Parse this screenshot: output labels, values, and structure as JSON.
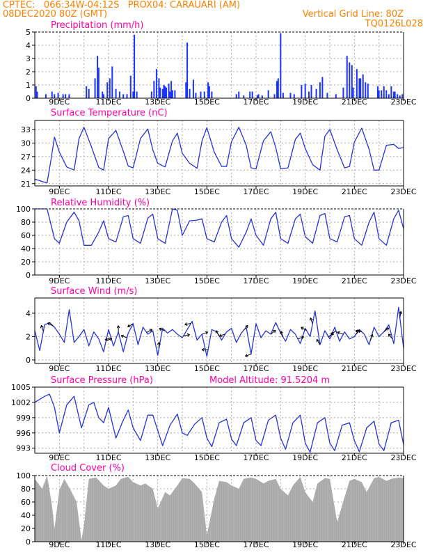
{
  "header": {
    "line1": "CPTEC:   066:34W-04:12S   PROX04: CARAUARI (AM)",
    "line2": "08DEC2020 80Z (GMT)",
    "vertical_grid": "Vertical Grid Line: 80Z",
    "run_id": "TQ0126L028"
  },
  "colors": {
    "header": "#ff8000",
    "panel_title": "#ff00aa",
    "series_line": "#2233dd",
    "precip_bar": "#1a33ff",
    "cloud_fill": "#a8a8a8",
    "grid": "#aaaaaa"
  },
  "x_tick_labels": [
    "9DEC",
    "11DEC",
    "13DEC",
    "15DEC",
    "17DEC",
    "19DEC",
    "21DEC",
    "23DEC"
  ],
  "chart_data": [
    {
      "id": "precip",
      "type": "bar",
      "title": "Precipitation (mm/h)",
      "x_unit": "days since 08DEC2020 08Z",
      "xlim": [
        0,
        15
      ],
      "ylim": [
        0,
        5
      ],
      "yticks": [
        0,
        1,
        2,
        3,
        4,
        5
      ],
      "grid": true,
      "bars": [
        [
          0.05,
          0.9
        ],
        [
          0.1,
          0.5
        ],
        [
          0.45,
          0.3
        ],
        [
          0.7,
          0.5
        ],
        [
          0.8,
          0.3
        ],
        [
          0.95,
          0.4
        ],
        [
          1.15,
          0.3
        ],
        [
          1.25,
          0.3
        ],
        [
          1.4,
          0.3
        ],
        [
          2.1,
          0.9
        ],
        [
          2.2,
          0.7
        ],
        [
          2.45,
          1.5
        ],
        [
          2.55,
          3.2
        ],
        [
          2.6,
          2.3
        ],
        [
          2.75,
          0.5
        ],
        [
          2.8,
          0.3
        ],
        [
          2.95,
          1.2
        ],
        [
          3.05,
          1.5
        ],
        [
          3.15,
          2.4
        ],
        [
          3.3,
          0.7
        ],
        [
          3.45,
          0.5
        ],
        [
          3.6,
          0.3
        ],
        [
          3.75,
          0.3
        ],
        [
          3.9,
          1.7
        ],
        [
          4.0,
          0.5
        ],
        [
          4.05,
          4.8
        ],
        [
          4.15,
          0.5
        ],
        [
          4.75,
          0.5
        ],
        [
          4.85,
          1.3
        ],
        [
          4.95,
          2.2
        ],
        [
          5.05,
          1.5
        ],
        [
          5.1,
          0.8
        ],
        [
          5.2,
          0.7
        ],
        [
          5.25,
          1.0
        ],
        [
          5.3,
          0.9
        ],
        [
          5.35,
          0.8
        ],
        [
          5.45,
          1.1
        ],
        [
          5.5,
          0.5
        ],
        [
          5.55,
          1.3
        ],
        [
          5.6,
          0.6
        ],
        [
          5.7,
          0.6
        ],
        [
          6.15,
          1.2
        ],
        [
          6.2,
          4.2
        ],
        [
          6.3,
          0.7
        ],
        [
          6.45,
          1.4
        ],
        [
          6.55,
          0.4
        ],
        [
          6.75,
          0.5
        ],
        [
          6.9,
          0.5
        ],
        [
          7.05,
          1.2
        ],
        [
          7.1,
          0.9
        ],
        [
          7.2,
          0.5
        ],
        [
          8.2,
          0.3
        ],
        [
          8.3,
          0.5
        ],
        [
          8.5,
          0.2
        ],
        [
          8.75,
          0.5
        ],
        [
          8.85,
          0.5
        ],
        [
          9.05,
          0.2
        ],
        [
          9.1,
          0.3
        ],
        [
          9.25,
          0.2
        ],
        [
          9.5,
          0.6
        ],
        [
          9.75,
          0.3
        ],
        [
          9.85,
          1.3
        ],
        [
          9.9,
          1.5
        ],
        [
          10.0,
          4.9
        ],
        [
          10.1,
          0.4
        ],
        [
          10.4,
          0.4
        ],
        [
          10.55,
          0.3
        ],
        [
          10.85,
          1.0
        ],
        [
          11.0,
          1.1
        ],
        [
          11.15,
          0.5
        ],
        [
          11.25,
          1.0
        ],
        [
          11.45,
          0.7
        ],
        [
          11.6,
          1.2
        ],
        [
          11.7,
          1.6
        ],
        [
          11.9,
          0.4
        ],
        [
          12.25,
          0.3
        ],
        [
          12.55,
          0.8
        ],
        [
          12.7,
          3.2
        ],
        [
          12.8,
          2.7
        ],
        [
          12.9,
          2.5
        ],
        [
          12.95,
          0.8
        ],
        [
          13.1,
          2.2
        ],
        [
          13.2,
          1.5
        ],
        [
          13.25,
          1.5
        ],
        [
          13.35,
          1.8
        ],
        [
          13.45,
          1.2
        ],
        [
          13.55,
          1.1
        ],
        [
          13.95,
          0.9
        ],
        [
          14.0,
          0.6
        ],
        [
          14.1,
          0.6
        ],
        [
          14.2,
          0.9
        ],
        [
          14.3,
          0.6
        ],
        [
          14.4,
          0.3
        ],
        [
          14.5,
          0.9
        ],
        [
          14.6,
          0.5
        ],
        [
          14.65,
          0.5
        ],
        [
          14.75,
          0.3
        ],
        [
          14.85,
          0.2
        ],
        [
          14.95,
          0.3
        ]
      ]
    },
    {
      "id": "temp",
      "type": "line",
      "title": "Surface Temperature (nC)",
      "x_unit": "days since 08DEC2020 08Z",
      "xlim": [
        0,
        15
      ],
      "ylim": [
        20.5,
        35
      ],
      "yticks": [
        21,
        24,
        27,
        30,
        33
      ],
      "grid": true,
      "x": [
        0,
        0.4,
        0.5,
        0.65,
        0.8,
        1.0,
        1.3,
        1.6,
        1.8,
        2.0,
        2.3,
        2.6,
        2.8,
        3.0,
        3.3,
        3.6,
        3.8,
        4.0,
        4.3,
        4.6,
        4.8,
        5.0,
        5.3,
        5.6,
        5.8,
        6.0,
        6.3,
        6.6,
        6.8,
        7.0,
        7.3,
        7.6,
        7.8,
        8.0,
        8.3,
        8.6,
        8.8,
        9.0,
        9.3,
        9.6,
        9.8,
        10.0,
        10.3,
        10.6,
        10.8,
        11.0,
        11.3,
        11.6,
        11.8,
        12.0,
        12.3,
        12.6,
        12.8,
        13.0,
        13.3,
        13.6,
        13.8,
        14.0,
        14.3,
        14.6,
        14.8,
        15.0
      ],
      "values": [
        22,
        21.3,
        21.2,
        26,
        31.3,
        28,
        24.7,
        24,
        31,
        33.5,
        29.2,
        24.6,
        24,
        31,
        32.8,
        28.2,
        24.9,
        24.5,
        31,
        33.1,
        28.5,
        25.5,
        24.7,
        30.5,
        32.2,
        27.7,
        25.5,
        24.4,
        30.5,
        33.4,
        28,
        24.8,
        24.8,
        30.3,
        33.5,
        29.5,
        24.5,
        24.3,
        30.5,
        32.5,
        29,
        24.3,
        24.5,
        30.8,
        32.2,
        28.8,
        25.2,
        24,
        31.5,
        33,
        28.5,
        24.5,
        24.8,
        30.2,
        33.3,
        28.6,
        24,
        24,
        29.5,
        29.7,
        28.8,
        29
      ]
    },
    {
      "id": "rh",
      "type": "line",
      "title": "Relative Humidity (%)",
      "x_unit": "days since 08DEC2020 08Z",
      "xlim": [
        0,
        15
      ],
      "ylim": [
        0,
        100
      ],
      "yticks": [
        0,
        20,
        40,
        60,
        80,
        100
      ],
      "grid": true,
      "x": [
        0,
        0.5,
        0.8,
        1.0,
        1.3,
        1.6,
        1.8,
        2.0,
        2.3,
        2.6,
        2.8,
        3.0,
        3.3,
        3.6,
        3.8,
        4.0,
        4.3,
        4.6,
        4.8,
        5.0,
        5.3,
        5.6,
        5.8,
        6.0,
        6.3,
        6.6,
        6.8,
        7.0,
        7.3,
        7.6,
        7.8,
        8.0,
        8.3,
        8.6,
        8.8,
        9.0,
        9.3,
        9.6,
        9.8,
        10.0,
        10.3,
        10.6,
        10.8,
        11.0,
        11.3,
        11.6,
        11.8,
        12.0,
        12.3,
        12.6,
        12.8,
        13.0,
        13.3,
        13.6,
        13.8,
        14.0,
        14.3,
        14.6,
        14.8,
        15.0
      ],
      "values": [
        100,
        100,
        55,
        48,
        80,
        95,
        82,
        45,
        45,
        65,
        82,
        55,
        50,
        88,
        90,
        55,
        48,
        86,
        92,
        55,
        48,
        100,
        98,
        60,
        82,
        83,
        85,
        55,
        50,
        80,
        90,
        55,
        42,
        65,
        85,
        60,
        45,
        85,
        95,
        55,
        48,
        85,
        92,
        58,
        48,
        90,
        93,
        55,
        50,
        88,
        90,
        55,
        45,
        80,
        95,
        55,
        45,
        85,
        98,
        70
      ]
    },
    {
      "id": "wind",
      "type": "line",
      "title": "Surface Wind (m/s)",
      "x_unit": "days since 08DEC2020 08Z",
      "xlim": [
        0,
        15
      ],
      "ylim": [
        -0.3,
        5.3
      ],
      "yticks": [
        0,
        2,
        4
      ],
      "grid": true,
      "x": [
        0,
        0.2,
        0.4,
        0.6,
        0.8,
        1.0,
        1.2,
        1.4,
        1.6,
        1.8,
        2.0,
        2.2,
        2.4,
        2.6,
        2.8,
        3.0,
        3.2,
        3.4,
        3.6,
        3.8,
        4.0,
        4.2,
        4.4,
        4.6,
        4.8,
        5.0,
        5.2,
        5.4,
        5.6,
        5.8,
        6.0,
        6.2,
        6.4,
        6.6,
        6.8,
        7.0,
        7.2,
        7.4,
        7.6,
        7.8,
        8.0,
        8.2,
        8.4,
        8.6,
        8.8,
        9.0,
        9.2,
        9.4,
        9.6,
        9.8,
        10.0,
        10.2,
        10.4,
        10.6,
        10.8,
        11.0,
        11.2,
        11.4,
        11.6,
        11.8,
        12.0,
        12.2,
        12.4,
        12.6,
        12.8,
        13.0,
        13.2,
        13.4,
        13.6,
        13.8,
        14.0,
        14.2,
        14.4,
        14.6,
        14.8,
        15.0
      ],
      "values": [
        2.5,
        0.8,
        3.0,
        3.2,
        2.8,
        2.2,
        1.5,
        4.3,
        1.5,
        2.0,
        2.6,
        1.2,
        2.4,
        1.8,
        0.7,
        2.6,
        1.2,
        2.4,
        0.7,
        2.3,
        3.1,
        1.3,
        2.8,
        2.2,
        2.5,
        0.4,
        2.7,
        2.3,
        2.6,
        2.2,
        1.9,
        2.6,
        3.3,
        1.7,
        2.2,
        0.3,
        2.6,
        2.4,
        1.7,
        2.4,
        2.7,
        1.5,
        2.3,
        2.8,
        0.5,
        3.1,
        1.9,
        2.5,
        2.2,
        3.2,
        2.3,
        1.6,
        2.6,
        2.2,
        1.4,
        2.7,
        2.0,
        4.2,
        1.3,
        2.5,
        1.8,
        2.8,
        1.6,
        2.4,
        1.8,
        2.0,
        2.6,
        2.2,
        1.3,
        2.8,
        2.0,
        2.4,
        3.0,
        1.4,
        4.5,
        1.0
      ],
      "arrows": [
        [
          0.35,
          -110
        ],
        [
          0.75,
          -150
        ],
        [
          2.9,
          -20
        ],
        [
          3.1,
          -200
        ],
        [
          3.4,
          -90
        ],
        [
          3.75,
          -160
        ],
        [
          4.0,
          -210
        ],
        [
          4.55,
          -30
        ],
        [
          5.05,
          -90
        ],
        [
          5.3,
          -160
        ],
        [
          6.05,
          -10
        ],
        [
          6.35,
          -190
        ],
        [
          6.8,
          -20
        ],
        [
          7.05,
          -180
        ],
        [
          7.5,
          -120
        ],
        [
          7.75,
          -200
        ],
        [
          8.5,
          -50
        ],
        [
          8.8,
          -200
        ],
        [
          9.6,
          -40
        ],
        [
          10.1,
          -110
        ],
        [
          10.7,
          -20
        ],
        [
          11.05,
          -150
        ],
        [
          11.3,
          -110
        ],
        [
          11.6,
          -120
        ],
        [
          11.95,
          -40
        ],
        [
          12.25,
          -220
        ],
        [
          12.55,
          -160
        ],
        [
          13.05,
          -50
        ],
        [
          13.3,
          -170
        ],
        [
          13.65,
          -70
        ],
        [
          14.2,
          -40
        ],
        [
          14.55,
          -130
        ],
        [
          14.85,
          -80
        ]
      ]
    },
    {
      "id": "pres",
      "type": "line",
      "title": "Surface Pressure (hPa)",
      "subtitle": "Model Altitude: 91.5204 m",
      "x_unit": "days since 08DEC2020 08Z",
      "xlim": [
        0,
        15
      ],
      "ylim": [
        992,
        1005
      ],
      "yticks": [
        993,
        996,
        999,
        1002,
        1005
      ],
      "grid": true,
      "x": [
        0,
        0.4,
        0.6,
        0.8,
        1.0,
        1.3,
        1.6,
        1.9,
        2.2,
        2.4,
        2.6,
        2.8,
        3.0,
        3.3,
        3.6,
        3.8,
        4.0,
        4.3,
        4.6,
        4.8,
        5.0,
        5.2,
        5.5,
        5.8,
        6.0,
        6.2,
        6.5,
        6.8,
        7.0,
        7.2,
        7.5,
        7.8,
        8.0,
        8.2,
        8.5,
        8.8,
        9.0,
        9.2,
        9.5,
        9.8,
        10.0,
        10.2,
        10.5,
        10.8,
        11.0,
        11.2,
        11.5,
        11.8,
        12.0,
        12.2,
        12.5,
        12.8,
        13.0,
        13.2,
        13.5,
        13.8,
        14.0,
        14.2,
        14.5,
        14.8,
        15.0
      ],
      "values": [
        1002,
        1003.2,
        1003.6,
        1001,
        996,
        1001.5,
        1003.2,
        997,
        1001.5,
        1002,
        999,
        998,
        1001,
        995,
        998.5,
        1000.5,
        997,
        994.5,
        999.5,
        999.5,
        996.5,
        993.5,
        997.5,
        999.7,
        996,
        995.5,
        997.7,
        999,
        995,
        993.3,
        998,
        998.7,
        994.8,
        993.5,
        998,
        999,
        994.5,
        993.5,
        998.5,
        999.5,
        995,
        992.8,
        998,
        999.5,
        994,
        992.2,
        998,
        999,
        994,
        992.5,
        997.5,
        998,
        994.5,
        992.3,
        997,
        998.3,
        993.8,
        992.5,
        998,
        998.5,
        993.7
      ]
    },
    {
      "id": "cloud",
      "type": "area",
      "title": "Cloud Cover (%)",
      "x_unit": "days since 08DEC2020 08Z",
      "xlim": [
        0,
        15
      ],
      "ylim": [
        0,
        100
      ],
      "yticks": [
        0,
        20,
        40,
        60,
        80,
        100
      ],
      "grid": true,
      "x": [
        0,
        0.3,
        0.5,
        0.7,
        0.8,
        1.0,
        1.2,
        1.5,
        1.7,
        1.9,
        2.0,
        2.2,
        2.5,
        2.8,
        3.0,
        3.3,
        3.5,
        3.8,
        4.0,
        4.3,
        4.5,
        4.8,
        5.0,
        5.3,
        5.5,
        5.8,
        6.0,
        6.3,
        6.5,
        6.8,
        7.0,
        7.3,
        7.5,
        7.8,
        8.0,
        8.3,
        8.5,
        8.8,
        9.0,
        9.3,
        9.5,
        9.8,
        10.0,
        10.3,
        10.5,
        10.8,
        11.0,
        11.3,
        11.5,
        11.8,
        12.0,
        12.3,
        12.5,
        12.8,
        13.0,
        13.3,
        13.5,
        13.8,
        14.0,
        14.3,
        14.5,
        14.8,
        15.0
      ],
      "values": [
        95,
        80,
        100,
        55,
        20,
        78,
        95,
        75,
        60,
        2,
        25,
        95,
        97,
        85,
        80,
        85,
        95,
        98,
        90,
        85,
        88,
        80,
        50,
        75,
        70,
        85,
        96,
        95,
        88,
        75,
        10,
        65,
        92,
        90,
        85,
        80,
        95,
        97,
        95,
        88,
        92,
        95,
        80,
        70,
        85,
        98,
        75,
        60,
        88,
        96,
        95,
        30,
        55,
        92,
        95,
        90,
        75,
        96,
        98,
        92,
        95,
        97,
        96
      ]
    }
  ]
}
